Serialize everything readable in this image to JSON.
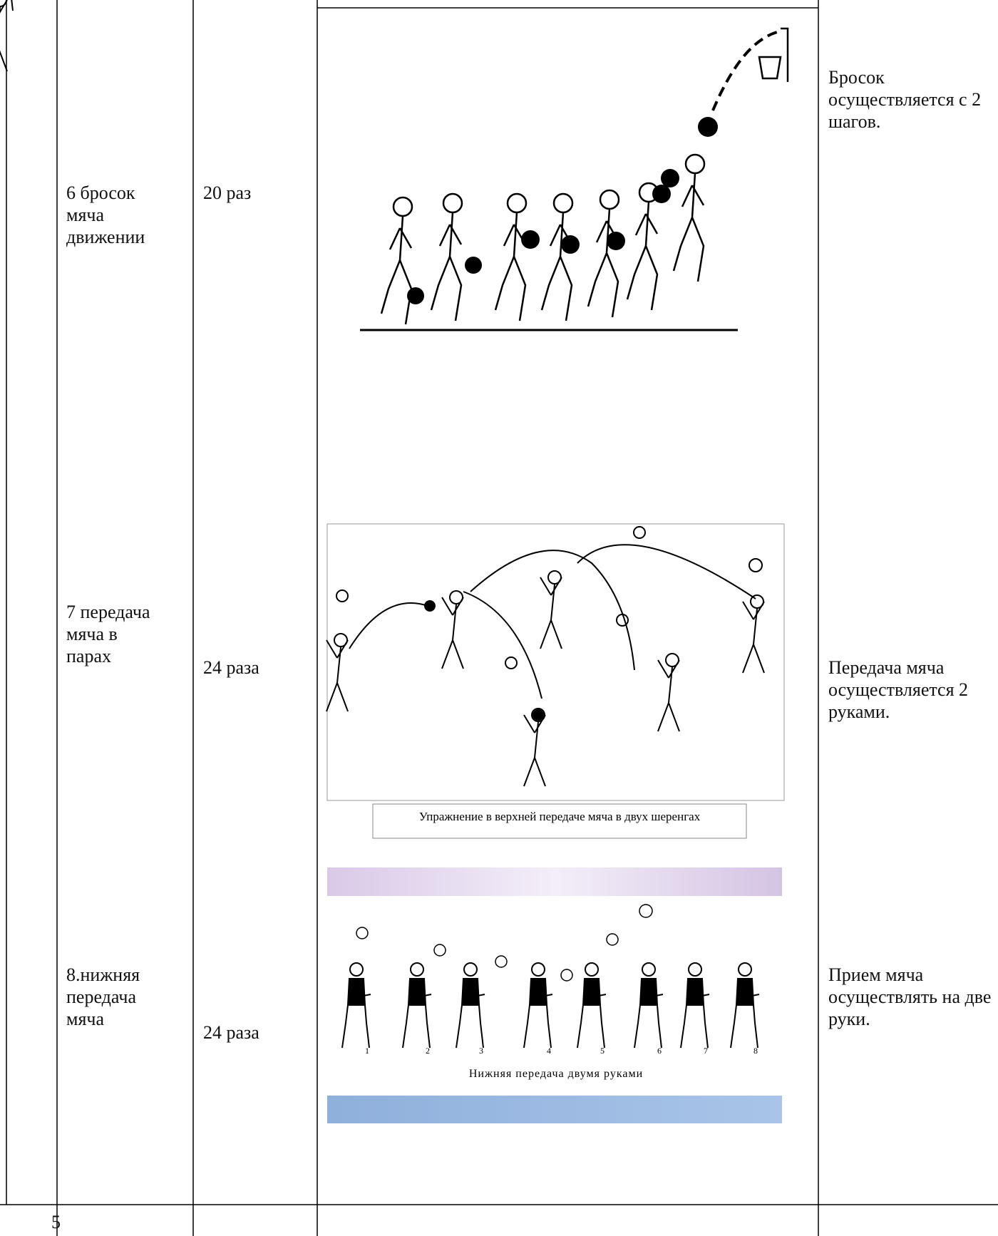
{
  "table": {
    "rows": [
      {
        "exercise": "6 бросок мяча движении",
        "dosage": "20 раз",
        "note": "Бросок осуществляется с 2 шагов."
      },
      {
        "exercise": "7 передача мяча в парах",
        "dosage": "24 раза",
        "note": "Передача мяча осуществляется 2 руками."
      },
      {
        "exercise": "8.нижняя передача мяча",
        "dosage": "24 раза",
        "note": "Прием мяча осуществлять на две руки."
      }
    ]
  },
  "figures": {
    "pass_caption": "Упражнение в верхней передаче мяча в двух шеренгах",
    "underhand_caption": "Нижняя передача двумя руками",
    "underhand_numbers": [
      "1",
      "2",
      "3",
      "4",
      "5",
      "6",
      "7",
      "8"
    ]
  },
  "footer_row": {
    "number": "5"
  }
}
